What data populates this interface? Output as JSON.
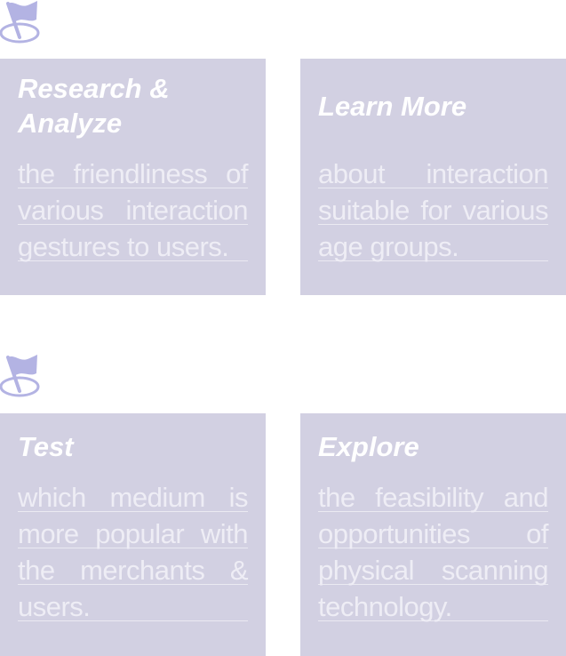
{
  "colors": {
    "card_background": "#d2d0e2",
    "flag": "#b3b3e3",
    "title_text": "#ffffff",
    "body_text": "#eeedf5"
  },
  "groups": [
    {
      "icon": "flag-marker-icon",
      "cards": [
        {
          "title": "Research & Analyze",
          "body": "the friendliness of various interaction gestures to users."
        },
        {
          "title": "Learn More",
          "body": "about interaction suitable for various age groups."
        }
      ]
    },
    {
      "icon": "flag-marker-icon",
      "cards": [
        {
          "title": "Test",
          "body": "which medium is more popular with the merchants & users."
        },
        {
          "title": "Explore",
          "body": "the feasibility and opportunities of physical scanning technology."
        }
      ]
    }
  ]
}
